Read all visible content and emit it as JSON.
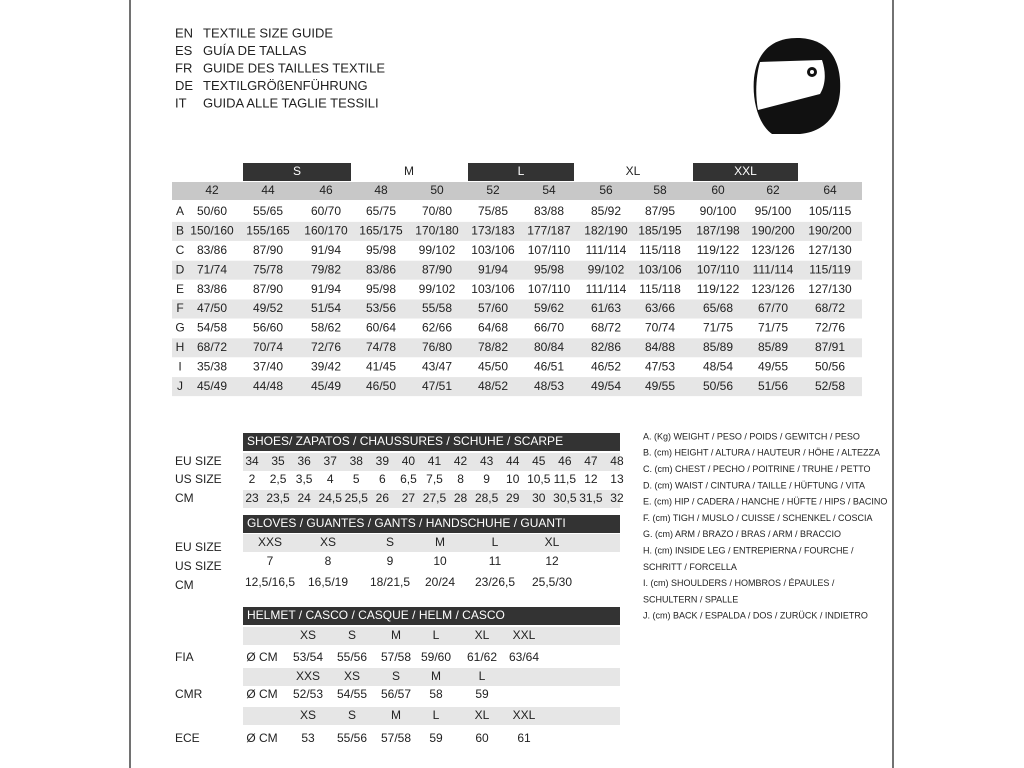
{
  "header": {
    "languages": [
      {
        "code": "EN",
        "text": "TEXTILE SIZE GUIDE"
      },
      {
        "code": "ES",
        "text": "GUÍA DE TALLAS"
      },
      {
        "code": "FR",
        "text": "GUIDE DES TAILLES TEXTILE"
      },
      {
        "code": "DE",
        "text": "TEXTILGRÖßENFÜHRUNG"
      },
      {
        "code": "IT",
        "text": "GUIDA ALLE TAGLIE TESSILI"
      }
    ]
  },
  "main_table": {
    "size_groups": [
      "S",
      "M",
      "L",
      "XL",
      "XXL"
    ],
    "sizes": [
      "42",
      "44",
      "46",
      "48",
      "50",
      "52",
      "54",
      "56",
      "58",
      "60",
      "62",
      "64"
    ],
    "rows": [
      {
        "label": "A",
        "values": [
          "50/60",
          "55/65",
          "60/70",
          "65/75",
          "70/80",
          "75/85",
          "83/88",
          "85/92",
          "87/95",
          "90/100",
          "95/100",
          "105/115"
        ]
      },
      {
        "label": "B",
        "values": [
          "150/160",
          "155/165",
          "160/170",
          "165/175",
          "170/180",
          "173/183",
          "177/187",
          "182/190",
          "185/195",
          "187/198",
          "190/200",
          "190/200"
        ]
      },
      {
        "label": "C",
        "values": [
          "83/86",
          "87/90",
          "91/94",
          "95/98",
          "99/102",
          "103/106",
          "107/110",
          "111/114",
          "115/118",
          "119/122",
          "123/126",
          "127/130"
        ]
      },
      {
        "label": "D",
        "values": [
          "71/74",
          "75/78",
          "79/82",
          "83/86",
          "87/90",
          "91/94",
          "95/98",
          "99/102",
          "103/106",
          "107/110",
          "111/114",
          "115/119"
        ]
      },
      {
        "label": "E",
        "values": [
          "83/86",
          "87/90",
          "91/94",
          "95/98",
          "99/102",
          "103/106",
          "107/110",
          "111/114",
          "115/118",
          "119/122",
          "123/126",
          "127/130"
        ]
      },
      {
        "label": "F",
        "values": [
          "47/50",
          "49/52",
          "51/54",
          "53/56",
          "55/58",
          "57/60",
          "59/62",
          "61/63",
          "63/66",
          "65/68",
          "67/70",
          "68/72"
        ]
      },
      {
        "label": "G",
        "values": [
          "54/58",
          "56/60",
          "58/62",
          "60/64",
          "62/66",
          "64/68",
          "66/70",
          "68/72",
          "70/74",
          "71/75",
          "71/75",
          "72/76"
        ]
      },
      {
        "label": "H",
        "values": [
          "68/72",
          "70/74",
          "72/76",
          "74/78",
          "76/80",
          "78/82",
          "80/84",
          "82/86",
          "84/88",
          "85/89",
          "85/89",
          "87/91"
        ]
      },
      {
        "label": "I",
        "values": [
          "35/38",
          "37/40",
          "39/42",
          "41/45",
          "43/47",
          "45/50",
          "46/51",
          "46/52",
          "47/53",
          "48/54",
          "49/55",
          "50/56"
        ]
      },
      {
        "label": "J",
        "values": [
          "45/49",
          "44/48",
          "45/49",
          "46/50",
          "47/51",
          "48/52",
          "48/53",
          "49/54",
          "49/55",
          "50/56",
          "51/56",
          "52/58"
        ]
      }
    ]
  },
  "shoes": {
    "title": "SHOES/ ZAPATOS / CHAUSSURES / SCHUHE / SCARPE",
    "rows": [
      {
        "label": "EU SIZE",
        "values": [
          "34",
          "35",
          "36",
          "37",
          "38",
          "39",
          "40",
          "41",
          "42",
          "43",
          "44",
          "45",
          "46",
          "47",
          "48"
        ]
      },
      {
        "label": "US SIZE",
        "values": [
          "2",
          "2,5",
          "3,5",
          "4",
          "5",
          "6",
          "6,5",
          "7,5",
          "8",
          "9",
          "10",
          "10,5",
          "11,5",
          "12",
          "13"
        ]
      },
      {
        "label": "CM",
        "values": [
          "23",
          "23,5",
          "24",
          "24,5",
          "25,5",
          "26",
          "27",
          "27,5",
          "28",
          "28,5",
          "29",
          "30",
          "30,5",
          "31,5",
          "32"
        ]
      }
    ]
  },
  "gloves": {
    "title": "GLOVES / GUANTES / GANTS / HANDSCHUHE / GUANTI",
    "rows": [
      {
        "label": "EU SIZE",
        "values": [
          "XXS",
          "XS",
          "S",
          "M",
          "L",
          "XL"
        ]
      },
      {
        "label": "US SIZE",
        "values": [
          "7",
          "8",
          "9",
          "10",
          "11",
          "12"
        ]
      },
      {
        "label": "CM",
        "values": [
          "12,5/16,5",
          "16,5/19",
          "18/21,5",
          "20/24",
          "23/26,5",
          "25,5/30"
        ]
      }
    ]
  },
  "helmet": {
    "title": "HELMET / CASCO / CASQUE / HELM / CASCO",
    "standards": [
      {
        "name": "FIA",
        "sizes": [
          "XS",
          "S",
          "M",
          "L",
          "XL",
          "XXL"
        ],
        "unit": "Ø CM",
        "values": [
          "53/54",
          "55/56",
          "57/58",
          "59/60",
          "61/62",
          "63/64"
        ]
      },
      {
        "name": "CMR",
        "sizes": [
          "XXS",
          "XS",
          "S",
          "M",
          "L"
        ],
        "unit": "Ø CM",
        "values": [
          "52/53",
          "54/55",
          "56/57",
          "58",
          "59"
        ]
      },
      {
        "name": "ECE",
        "sizes": [
          "XS",
          "S",
          "M",
          "L",
          "XL",
          "XXL"
        ],
        "unit": "Ø CM",
        "values": [
          "53",
          "55/56",
          "57/58",
          "59",
          "60",
          "61"
        ]
      }
    ]
  },
  "legend": [
    "A. (Kg) WEIGHT / PESO / POIDS / GEWITCH / PESO",
    "B. (cm) HEIGHT / ALTURA / HAUTEUR / HÖHE / ALTEZZA",
    "C. (cm) CHEST / PECHO / POITRINE / TRUHE / PETTO",
    "D. (cm) WAIST / CINTURA / TAILLE / HÜFTUNG / VITA",
    "E. (cm) HIP / CADERA / HANCHE / HÜFTE / HIPS / BACINO",
    "F. (cm) TIGH / MUSLO / CUISSE / SCHENKEL / COSCIA",
    "G. (cm) ARM / BRAZO / BRAS / ARM / BRACCIO",
    "H. (cm) INSIDE LEG / ENTREPIERNA / FOURCHE /",
    "SCHRITT / FORCELLA",
    "I. (cm) SHOULDERS / HOMBROS / ÉPAULES /",
    "SCHULTERN / SPALLE",
    "J. (cm) BACK / ESPALDA / DOS / ZURÜCK / INDIETRO"
  ]
}
